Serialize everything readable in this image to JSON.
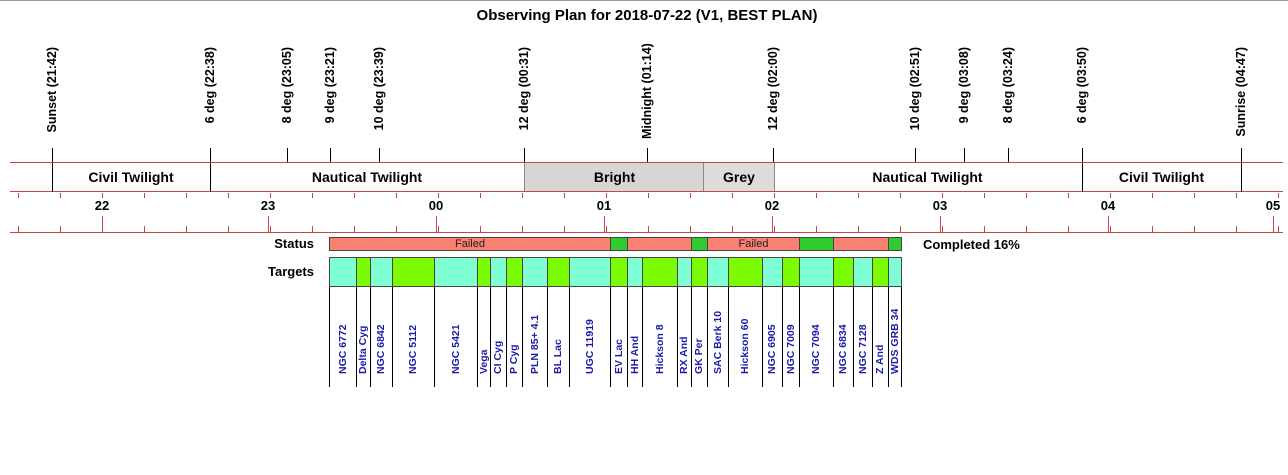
{
  "title": "Observing Plan for 2018-07-22 (V1, BEST PLAN)",
  "markers": [
    {
      "label": "Sunset (21:42)"
    },
    {
      "label": "6 deg (22:38)"
    },
    {
      "label": "8 deg (23:05)"
    },
    {
      "label": "9 deg (23:21)"
    },
    {
      "label": "10 deg (23:39)"
    },
    {
      "label": "12 deg (00:31)"
    },
    {
      "label": "Midnight (01:14)"
    },
    {
      "label": "12 deg (02:00)"
    },
    {
      "label": "10 deg (02:51)"
    },
    {
      "label": "9 deg (03:08)"
    },
    {
      "label": "8 deg (03:24)"
    },
    {
      "label": "6 deg (03:50)"
    },
    {
      "label": "Sunrise (04:47)"
    }
  ],
  "periods": [
    {
      "label": "Civil Twilight"
    },
    {
      "label": "Nautical Twilight"
    },
    {
      "label": "Bright"
    },
    {
      "label": "Grey"
    },
    {
      "label": "Nautical Twilight"
    },
    {
      "label": "Civil Twilight"
    }
  ],
  "hours": [
    "22",
    "23",
    "00",
    "01",
    "02",
    "03",
    "04",
    "05"
  ],
  "status_label": "Status",
  "targets_label": "Targets",
  "completed": "Completed 16%",
  "status_colors": {
    "failed": "#fa8072",
    "ok": "#2ecc2e"
  },
  "target_colors": {
    "cyan": "#7fffd4",
    "green": "#7cfc00"
  },
  "status_segments": [
    {
      "label": "Failed",
      "state": "failed"
    },
    {
      "label": "",
      "state": "ok"
    },
    {
      "label": "",
      "state": "failed"
    },
    {
      "label": "",
      "state": "ok"
    },
    {
      "label": "Failed",
      "state": "failed"
    },
    {
      "label": "",
      "state": "ok"
    },
    {
      "label": "",
      "state": "failed"
    },
    {
      "label": "",
      "state": "ok"
    }
  ],
  "targets": [
    {
      "name": "NGC 6772",
      "color": "cyan"
    },
    {
      "name": "Delta Cyg",
      "color": "green"
    },
    {
      "name": "NGC 6842",
      "color": "cyan"
    },
    {
      "name": "NGC 5112",
      "color": "green"
    },
    {
      "name": "NGC 5421",
      "color": "cyan"
    },
    {
      "name": "Vega",
      "color": "green"
    },
    {
      "name": "CI Cyg",
      "color": "cyan"
    },
    {
      "name": "P Cyg",
      "color": "green"
    },
    {
      "name": "PLN 85+ 4.1",
      "color": "cyan"
    },
    {
      "name": "BL Lac",
      "color": "green"
    },
    {
      "name": "UGC 11919",
      "color": "cyan"
    },
    {
      "name": "EV Lac",
      "color": "green"
    },
    {
      "name": "HH And",
      "color": "cyan"
    },
    {
      "name": "Hickson 8",
      "color": "green"
    },
    {
      "name": "RX And",
      "color": "cyan"
    },
    {
      "name": "GK Per",
      "color": "green"
    },
    {
      "name": "SAC Berk 10",
      "color": "cyan"
    },
    {
      "name": "Hickson 60",
      "color": "green"
    },
    {
      "name": "NGC 6905",
      "color": "cyan"
    },
    {
      "name": "NGC 7009",
      "color": "green"
    },
    {
      "name": "NGC 7094",
      "color": "cyan"
    },
    {
      "name": "NGC 6834",
      "color": "green"
    },
    {
      "name": "NGC 7128",
      "color": "cyan"
    },
    {
      "name": "Z And",
      "color": "green"
    },
    {
      "name": "WDS GRB 34",
      "color": "cyan"
    }
  ]
}
